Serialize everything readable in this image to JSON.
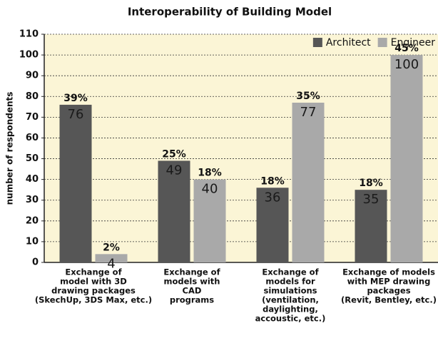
{
  "chart_data": {
    "type": "bar",
    "title": "Interoperability of Building Model",
    "y_label": "number of respondents",
    "categories": [
      [
        "Exchange of",
        "model with 3D",
        "drawing packages",
        "(SkechUp, 3DS Max, etc.)"
      ],
      [
        "Exchange of",
        "models with",
        "CAD",
        "programs"
      ],
      [
        "Exchange of",
        "models for",
        "simulations",
        "(ventilation,",
        "daylighting,",
        "accoustic, etc.)"
      ],
      [
        "Exchange of models",
        "with MEP drawing",
        "packages",
        "(Revit, Bentley, etc.)"
      ]
    ],
    "series": [
      {
        "name": "Architect",
        "color": "#565656",
        "values": [
          76,
          49,
          36,
          35
        ],
        "percent_labels": [
          "39%",
          "25%",
          "18%",
          "18%"
        ]
      },
      {
        "name": "Engineer",
        "color": "#a9a9a9",
        "values": [
          4,
          40,
          77,
          100
        ],
        "percent_labels": [
          "2%",
          "18%",
          "35%",
          "45%"
        ]
      }
    ],
    "ylim": [
      0,
      110
    ],
    "yticks": [
      0,
      10,
      20,
      30,
      40,
      50,
      60,
      70,
      80,
      90,
      100,
      110
    ],
    "grid": true,
    "legend": "top-right"
  }
}
